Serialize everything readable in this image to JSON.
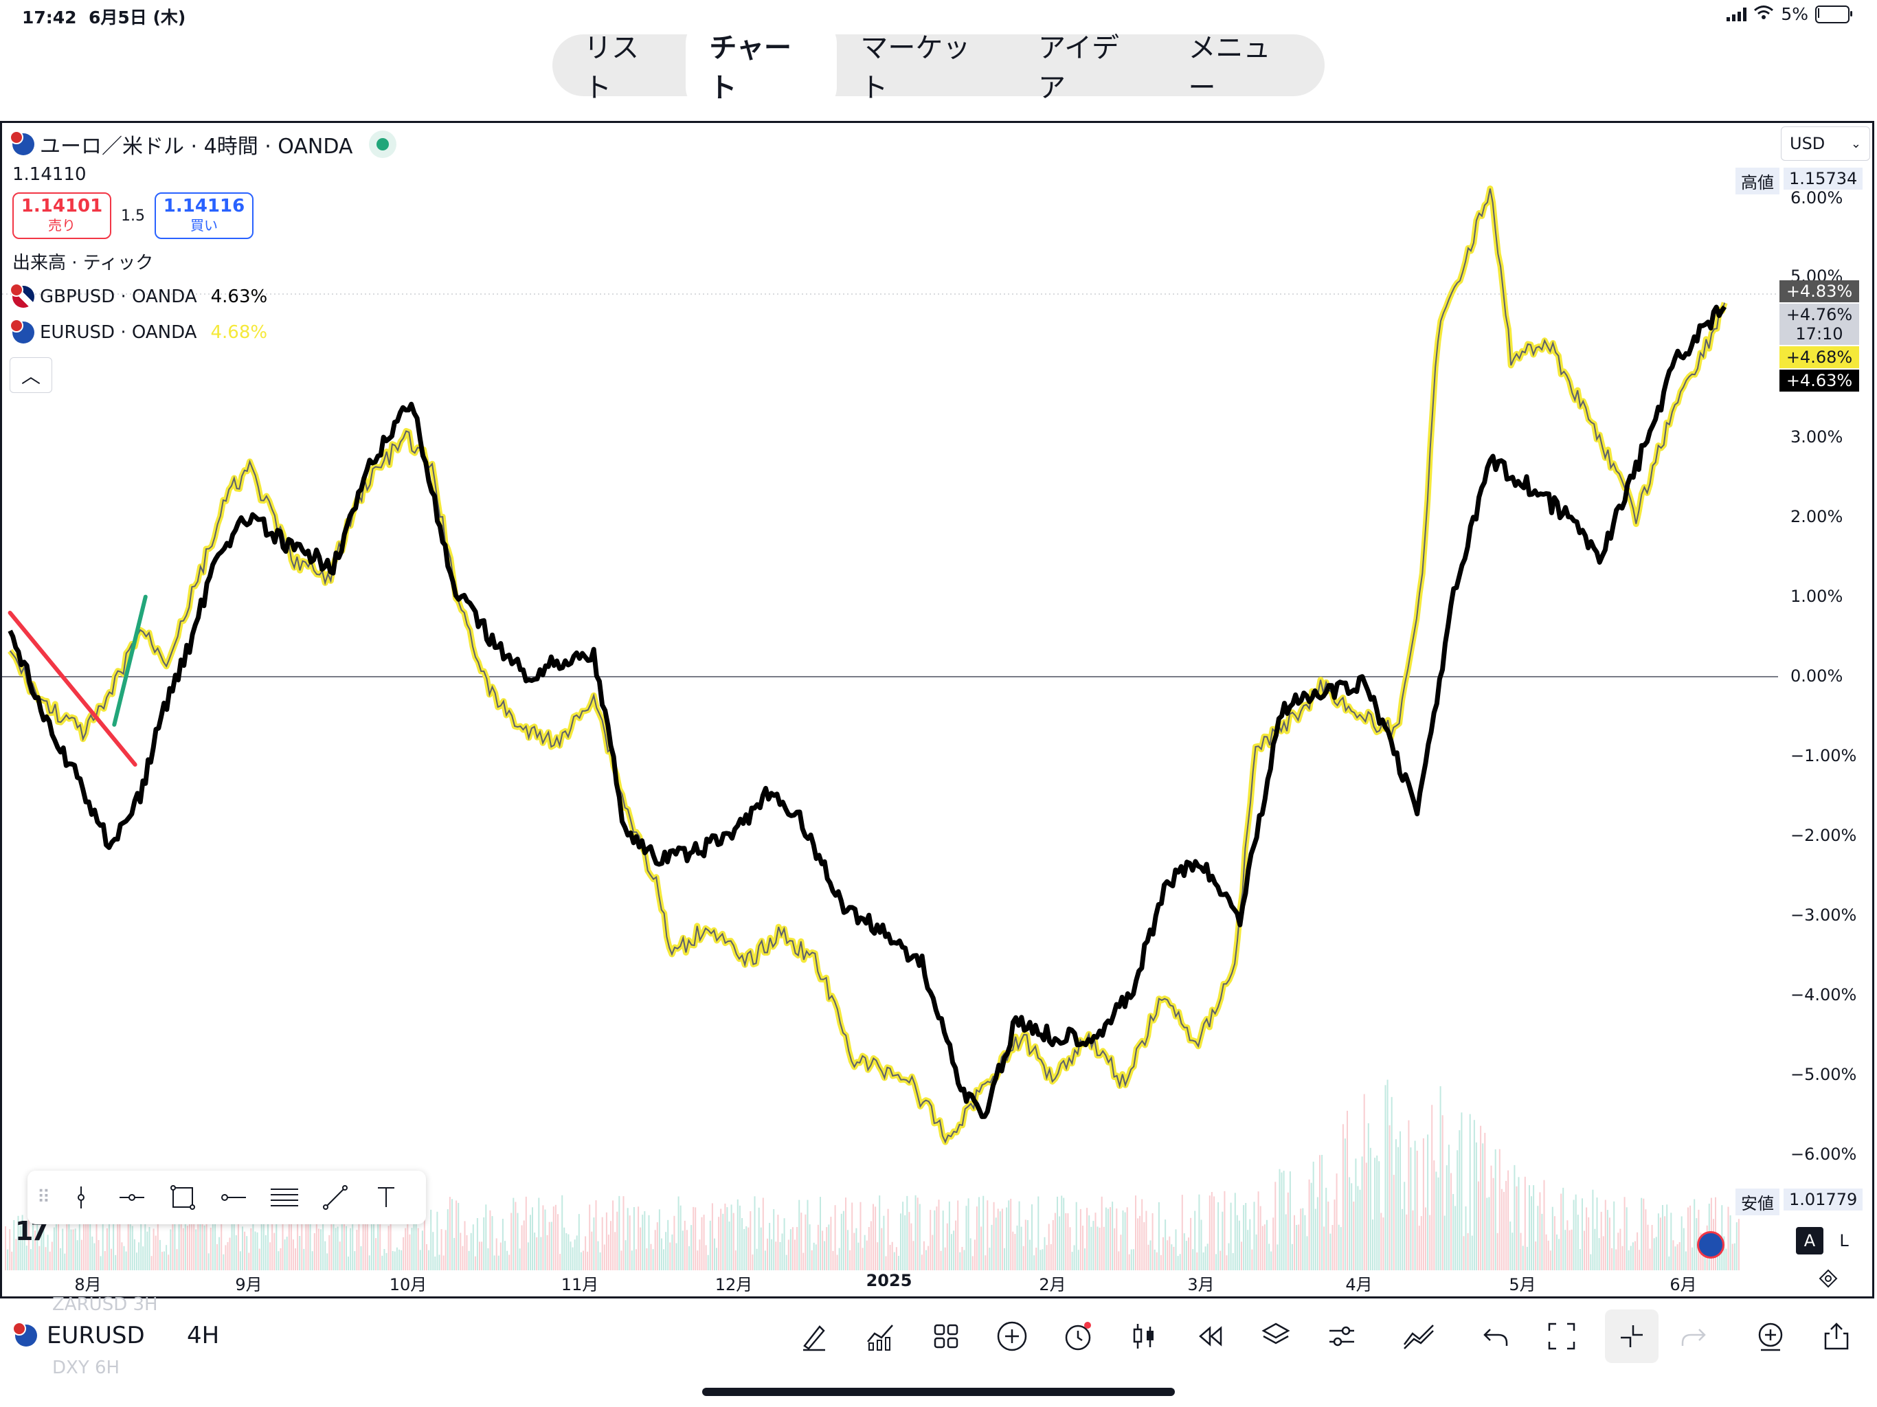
{
  "status_bar": {
    "time": "17:42",
    "date": "6月5日 (木)",
    "battery": "5%",
    "battery_level": 0.05
  },
  "nav": {
    "tabs": [
      "リスト",
      "チャート",
      "マーケット",
      "アイデア",
      "メニュー"
    ],
    "active": "チャート"
  },
  "header": {
    "title": "ユーロ／米ドル · 4時間 · OANDA",
    "price": "1.14110",
    "sell": {
      "price": "1.14101",
      "label": "売り"
    },
    "spread": "1.5",
    "buy": {
      "price": "1.14116",
      "label": "買い"
    },
    "volume_label": "出来高 · ティック",
    "compare": [
      {
        "symbol": "GBPUSD · OANDA",
        "change": "4.63%"
      },
      {
        "symbol": "EURUSD · OANDA",
        "change": "4.68%"
      }
    ]
  },
  "currency": "USD",
  "price_scale": {
    "high_label": "高値",
    "high_value": "1.15734",
    "low_label": "安値",
    "low_value": "1.01779",
    "ticks": [
      "6.00%",
      "5.00%",
      "3.00%",
      "2.00%",
      "1.00%",
      "0.00%",
      "−1.00%",
      "−2.00%",
      "−3.00%",
      "−4.00%",
      "−5.00%",
      "−6.00%"
    ],
    "badges": {
      "top": "+4.83%",
      "current": "+4.76%",
      "countdown": "17:10",
      "eurusd": "+4.68%",
      "gbpusd": "+4.63%"
    }
  },
  "x_axis": {
    "ticks": [
      "8月",
      "9月",
      "10月",
      "11月",
      "12月",
      "2025",
      "2月",
      "3月",
      "4月",
      "5月",
      "6月"
    ]
  },
  "chart_data": {
    "type": "line",
    "x_unit": "date",
    "y_unit": "percent change",
    "ylim": [
      -6.5,
      6.5
    ],
    "series": [
      {
        "name": "EURUSD · OANDA",
        "color": "#f5e93a",
        "x": [
          "2024-07-11",
          "2024-07-17",
          "2024-07-25",
          "2024-07-29",
          "2024-08-05",
          "2024-08-10",
          "2024-08-16",
          "2024-08-22",
          "2024-08-26",
          "2024-09-03",
          "2024-09-10",
          "2024-09-17",
          "2024-09-25",
          "2024-09-30",
          "2024-10-04",
          "2024-10-11",
          "2024-10-18",
          "2024-10-25",
          "2024-10-31",
          "2024-11-06",
          "2024-11-12",
          "2024-11-15",
          "2024-11-22",
          "2024-11-29",
          "2024-12-06",
          "2024-12-13",
          "2024-12-20",
          "2024-12-30",
          "2025-01-07",
          "2025-01-13",
          "2025-01-21",
          "2025-01-27",
          "2025-02-03",
          "2025-02-10",
          "2025-02-17",
          "2025-02-24",
          "2025-03-03",
          "2025-03-07",
          "2025-03-13",
          "2025-03-20",
          "2025-03-27",
          "2025-04-03",
          "2025-04-08",
          "2025-04-11",
          "2025-04-21",
          "2025-04-25",
          "2025-05-02",
          "2025-05-12",
          "2025-05-19",
          "2025-05-27",
          "2025-06-02",
          "2025-06-05"
        ],
        "y": [
          0.3,
          -0.3,
          -0.7,
          -0.4,
          0.6,
          0.2,
          1.2,
          2.3,
          2.6,
          1.5,
          1.2,
          2.4,
          3.0,
          2.6,
          1.2,
          -0.2,
          -0.7,
          -0.8,
          -0.2,
          -1.6,
          -2.6,
          -3.5,
          -3.1,
          -3.6,
          -3.2,
          -3.6,
          -4.8,
          -5.0,
          -5.8,
          -5.2,
          -4.5,
          -5.0,
          -4.5,
          -5.1,
          -4.0,
          -4.6,
          -3.6,
          -0.9,
          -0.6,
          -0.1,
          -0.5,
          -0.7,
          1.2,
          4.3,
          6.1,
          4.0,
          4.2,
          3.0,
          2.0,
          3.5,
          4.2,
          4.68
        ]
      },
      {
        "name": "GBPUSD · OANDA",
        "color": "#000000",
        "x": [
          "2024-07-11",
          "2024-07-18",
          "2024-07-25",
          "2024-07-30",
          "2024-08-05",
          "2024-08-09",
          "2024-08-15",
          "2024-08-20",
          "2024-08-26",
          "2024-09-03",
          "2024-09-11",
          "2024-09-18",
          "2024-09-26",
          "2024-10-01",
          "2024-10-04",
          "2024-10-11",
          "2024-10-18",
          "2024-10-25",
          "2024-10-31",
          "2024-11-06",
          "2024-11-12",
          "2024-11-19",
          "2024-11-26",
          "2024-12-03",
          "2024-12-09",
          "2024-12-18",
          "2024-12-26",
          "2025-01-02",
          "2025-01-10",
          "2025-01-14",
          "2025-01-20",
          "2025-01-27",
          "2025-02-04",
          "2025-02-11",
          "2025-02-18",
          "2025-02-24",
          "2025-03-04",
          "2025-03-12",
          "2025-03-20",
          "2025-03-28",
          "2025-04-02",
          "2025-04-07",
          "2025-04-14",
          "2025-04-21",
          "2025-04-28",
          "2025-05-06",
          "2025-05-12",
          "2025-05-19",
          "2025-05-27",
          "2025-06-05"
        ],
        "y": [
          0.6,
          -0.6,
          -1.4,
          -2.1,
          -1.5,
          -0.5,
          0.5,
          1.6,
          2.0,
          1.6,
          1.4,
          2.6,
          3.5,
          2.0,
          1.1,
          0.5,
          0.0,
          0.2,
          0.3,
          -1.9,
          -2.3,
          -2.2,
          -2.0,
          -1.5,
          -1.7,
          -2.9,
          -3.2,
          -3.6,
          -5.2,
          -5.5,
          -4.3,
          -4.5,
          -4.5,
          -4.0,
          -2.6,
          -2.3,
          -3.0,
          -0.4,
          -0.2,
          -0.1,
          -0.8,
          -1.7,
          1.0,
          2.7,
          2.4,
          2.0,
          1.5,
          2.6,
          4.0,
          4.63
        ]
      }
    ],
    "annotations": [
      {
        "type": "trend_line",
        "color": "#f23645",
        "from": [
          "2024-07-11",
          0.8
        ],
        "to": [
          "2024-08-04",
          -1.1
        ]
      },
      {
        "type": "trend_line",
        "color": "#22a67a",
        "from": [
          "2024-07-31",
          -0.6
        ],
        "to": [
          "2024-08-06",
          1.0
        ]
      }
    ]
  },
  "toolbar": {
    "symbol": "EURUSD",
    "timeframe": "4H",
    "ghost_symbols": [
      "ZARUSD 3H",
      "DXY 6H"
    ],
    "icons": [
      "draw-icon",
      "indicators-icon",
      "templates-icon",
      "add-icon",
      "alert-icon",
      "chart-type-icon",
      "replay-icon",
      "layers-icon",
      "settings-icon",
      "compare-icon",
      "undo-icon",
      "fullscreen-icon",
      "collapse-icon",
      "redo-icon",
      "add-symbol-icon",
      "share-icon"
    ]
  },
  "scale_modes": [
    "A",
    "L"
  ]
}
